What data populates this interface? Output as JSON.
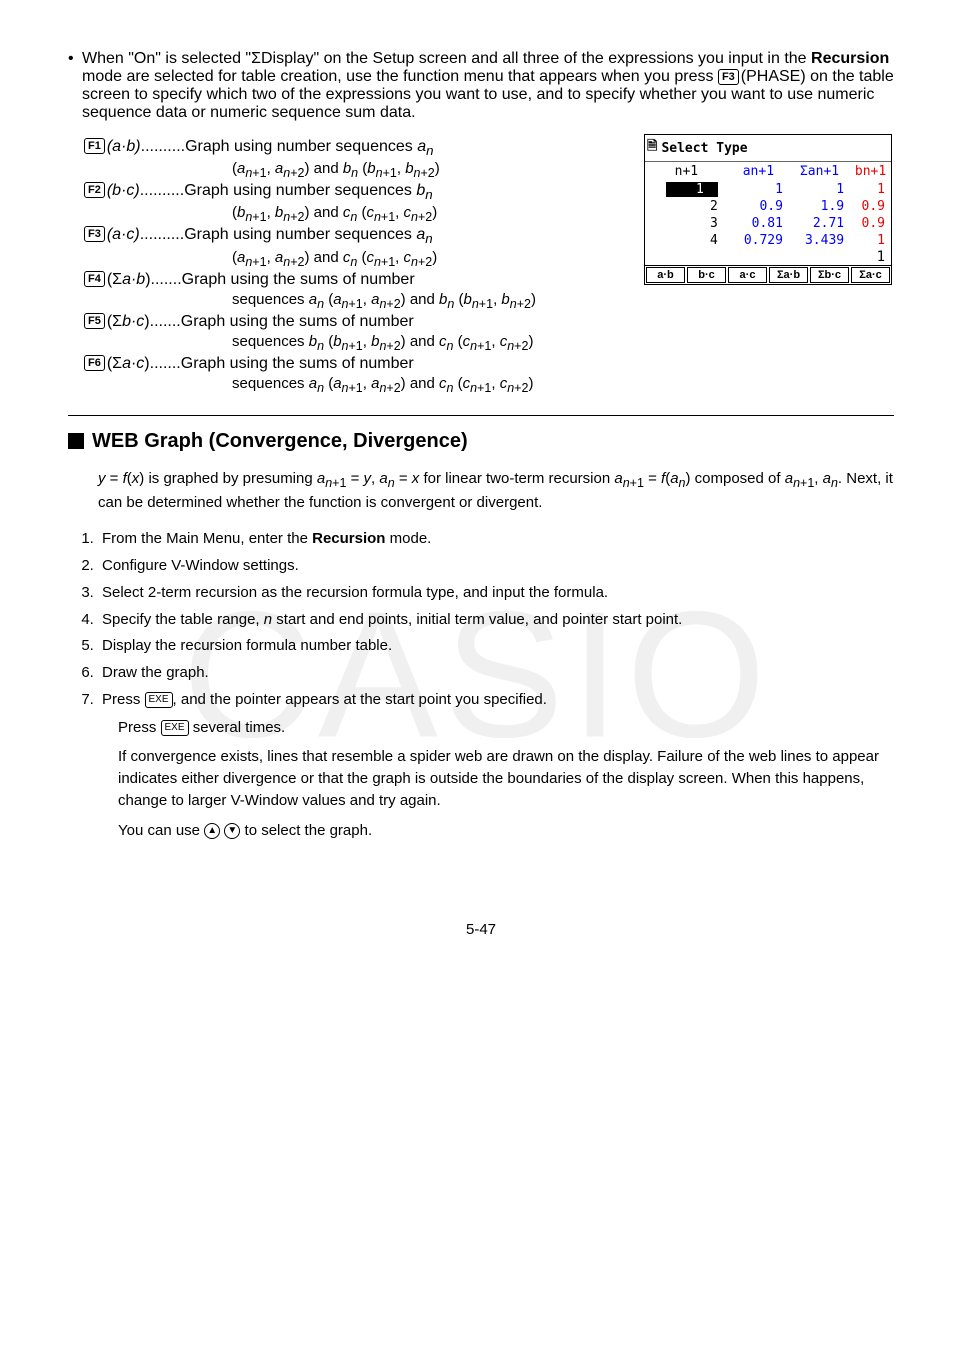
{
  "intro": {
    "bullet": "•",
    "text_before_bold": "When \"On\" is selected \"ΣDisplay\" on the Setup screen and all three of the expressions you input in the ",
    "bold1": "Recursion",
    "text_mid": " mode are selected for table creation, use the function menu that appears when you press ",
    "f3key": "F3",
    "text_after_f3": "(PHASE) on the table screen to specify which two of the expressions you want to use, and to specify whether you want to use numeric sequence data or numeric sequence sum data."
  },
  "fnkeys": {
    "f1": {
      "key": "F1",
      "arg": "(a·b)",
      "dots": "..........",
      "desc": "Graph using number sequences aₙ",
      "sub": "(aₙ₊₁, aₙ₊₂) and bₙ (bₙ₊₁, bₙ₊₂)"
    },
    "f2": {
      "key": "F2",
      "arg": "(b·c)",
      "dots": "..........",
      "desc": "Graph using number sequences bₙ",
      "sub": "(bₙ₊₁, bₙ₊₂) and cₙ (cₙ₊₁, cₙ₊₂)"
    },
    "f3": {
      "key": "F3",
      "arg": "(a·c)",
      "dots": "..........",
      "desc": "Graph using number sequences aₙ",
      "sub": "(aₙ₊₁, aₙ₊₂) and cₙ (cₙ₊₁, cₙ₊₂)"
    },
    "f4": {
      "key": "F4",
      "arg": "(Σa·b)",
      "dots": ".......",
      "desc": "Graph using the sums of number",
      "sub": "sequences aₙ (aₙ₊₁, aₙ₊₂) and bₙ (bₙ₊₁, bₙ₊₂)"
    },
    "f5": {
      "key": "F5",
      "arg": "(Σb·c)",
      "dots": ".......",
      "desc": "Graph using the sums of number",
      "sub": "sequences bₙ (bₙ₊₁, bₙ₊₂) and cₙ (cₙ₊₁, cₙ₊₂)"
    },
    "f6": {
      "key": "F6",
      "arg": "(Σa·c)",
      "dots": ".......",
      "desc": "Graph using the sums of number",
      "sub": "sequences aₙ (aₙ₊₁, aₙ₊₂) and cₙ (cₙ₊₁, cₙ₊₂)"
    }
  },
  "calc": {
    "title": "Select Type",
    "headers": [
      "n+1",
      "an+1",
      "Σan+1",
      "bn+1"
    ],
    "rows": [
      {
        "n": "1",
        "a": "1",
        "s": "1",
        "b": "1",
        "hl": true
      },
      {
        "n": "2",
        "a": "0.9",
        "s": "1.9",
        "b": "0.9"
      },
      {
        "n": "3",
        "a": "0.81",
        "s": "2.71",
        "b": "0.9"
      },
      {
        "n": "4",
        "a": "0.729",
        "s": "3.439",
        "b": "1"
      }
    ],
    "edit": "1",
    "tabs": [
      "a·b",
      "b·c",
      "a·c",
      "Σa·b",
      "Σb·c",
      "Σa·c"
    ]
  },
  "section": {
    "title": "WEB Graph (Convergence, Divergence)",
    "para": "y = f(x) is graphed by presuming aₙ₊₁ = y, aₙ = x for linear two-term recursion aₙ₊₁ = f(aₙ) composed of aₙ₊₁, aₙ. Next, it can be determined whether the function is convergent or divergent.",
    "steps": [
      {
        "pre": "From the Main Menu, enter the ",
        "bold": "Recursion",
        "post": " mode."
      },
      {
        "pre": "Configure V-Window settings."
      },
      {
        "pre": "Select 2-term recursion as the recursion formula type, and input the formula."
      },
      {
        "pre": "Specify the table range, n start and end points, initial term value, and pointer start point."
      },
      {
        "pre": "Display the recursion formula number table."
      },
      {
        "pre": "Draw the graph."
      },
      {
        "pre": "Press ",
        "key": "EXE",
        "post": ", and the pointer appears at the start point you specified."
      }
    ],
    "step7b_pre": "Press ",
    "step7b_key": "EXE",
    "step7b_post": " several times.",
    "conv": "If convergence exists, lines that resemble a spider web are drawn on the display. Failure of the web lines to appear indicates either divergence or that the graph is outside the boundaries of the display screen. When this happens, change to larger V-Window values and try again.",
    "arrows_pre": "You can use ",
    "arrows_post": " to select the graph.",
    "up": "▲",
    "down": "▼"
  },
  "pagenum": "5-47"
}
